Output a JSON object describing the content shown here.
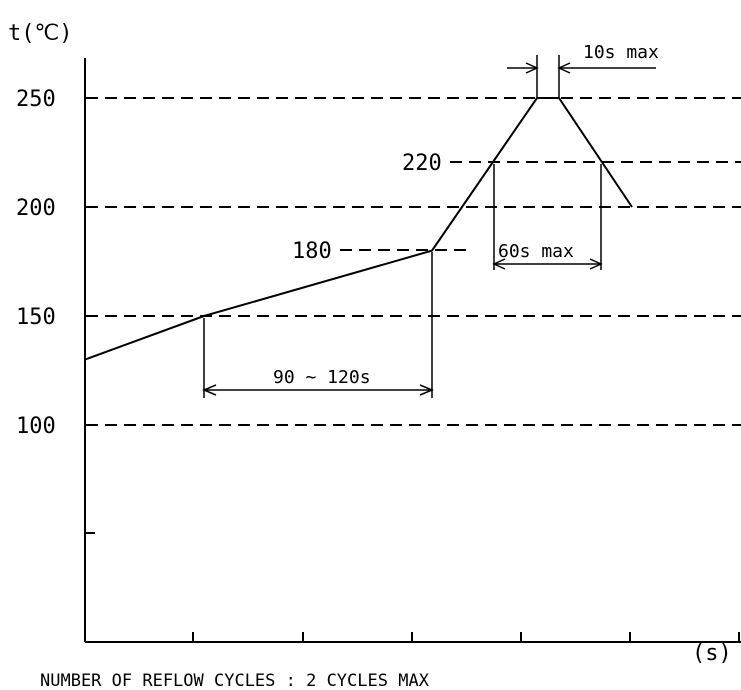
{
  "chart_data": {
    "type": "line",
    "title": "",
    "ylabel": "t(℃)",
    "xlabel": "(s)",
    "y_ticks": [
      "250",
      "200",
      "150",
      "100"
    ],
    "y_gridlines": [
      250,
      200,
      150,
      100
    ],
    "grid": true,
    "series": [
      {
        "points": [
          {
            "y": 130
          },
          {
            "y": 150
          },
          {
            "y": 180
          },
          {
            "y": 250
          },
          {
            "y": 250
          },
          {
            "y": 200
          }
        ]
      }
    ],
    "annotations": {
      "peak_time": "10s max",
      "above_220_time": "60s max",
      "preheat_time": "90 ~ 120s",
      "level_220": "220",
      "level_180": "180"
    },
    "note": "NUMBER OF REFLOW CYCLES : 2 CYCLES MAX"
  }
}
